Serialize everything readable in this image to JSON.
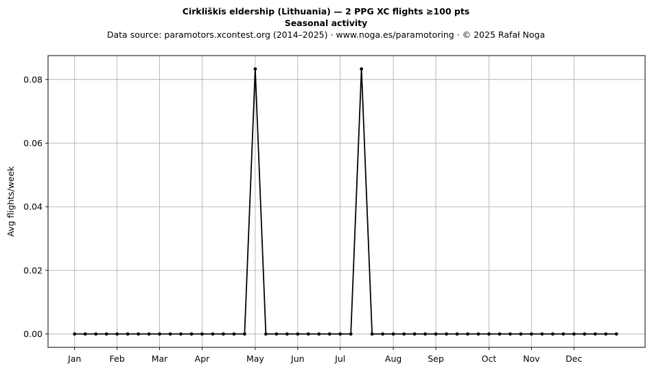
{
  "chart_data": {
    "type": "line",
    "title": "Cirkliškis eldership (Lithuania)  —  2 PPG XC flights ≥100 pts",
    "subtitle": "Seasonal activity",
    "source_line": "Data source: paramotors.xcontest.org (2014–2025)  ·  www.noga.es/paramotoring  ·  © 2025 Rafał Noga",
    "xlabel": "",
    "ylabel": "Avg flights/week",
    "x_unit": "week of year",
    "x": [
      1,
      2,
      3,
      4,
      5,
      6,
      7,
      8,
      9,
      10,
      11,
      12,
      13,
      14,
      15,
      16,
      17,
      18,
      19,
      20,
      21,
      22,
      23,
      24,
      25,
      26,
      27,
      28,
      29,
      30,
      31,
      32,
      33,
      34,
      35,
      36,
      37,
      38,
      39,
      40,
      41,
      42,
      43,
      44,
      45,
      46,
      47,
      48,
      49,
      50,
      51,
      52
    ],
    "y": [
      0,
      0,
      0,
      0,
      0,
      0,
      0,
      0,
      0,
      0,
      0,
      0,
      0,
      0,
      0,
      0,
      0,
      0.0833,
      0,
      0,
      0,
      0,
      0,
      0,
      0,
      0,
      0,
      0.0833,
      0,
      0,
      0,
      0,
      0,
      0,
      0,
      0,
      0,
      0,
      0,
      0,
      0,
      0,
      0,
      0,
      0,
      0,
      0,
      0,
      0,
      0,
      0,
      0
    ],
    "x_ticks": [
      {
        "label": "Jan",
        "x": 1
      },
      {
        "label": "Feb",
        "x": 5
      },
      {
        "label": "Mar",
        "x": 9
      },
      {
        "label": "Apr",
        "x": 13
      },
      {
        "label": "May",
        "x": 18
      },
      {
        "label": "Jun",
        "x": 22
      },
      {
        "label": "Jul",
        "x": 26
      },
      {
        "label": "Aug",
        "x": 31
      },
      {
        "label": "Sep",
        "x": 35
      },
      {
        "label": "Oct",
        "x": 40
      },
      {
        "label": "Nov",
        "x": 44
      },
      {
        "label": "Dec",
        "x": 48
      }
    ],
    "y_ticks": [
      {
        "label": "0.00",
        "y": 0
      },
      {
        "label": "0.02",
        "y": 0.02
      },
      {
        "label": "0.04",
        "y": 0.04
      },
      {
        "label": "0.06",
        "y": 0.06
      },
      {
        "label": "0.08",
        "y": 0.08
      }
    ],
    "xlim": [
      -1.5,
      54.7
    ],
    "ylim": [
      -0.0042,
      0.0875
    ],
    "grid": true,
    "legend": "none",
    "line_color": "#000000",
    "grid_color": "#b0b0b0"
  }
}
